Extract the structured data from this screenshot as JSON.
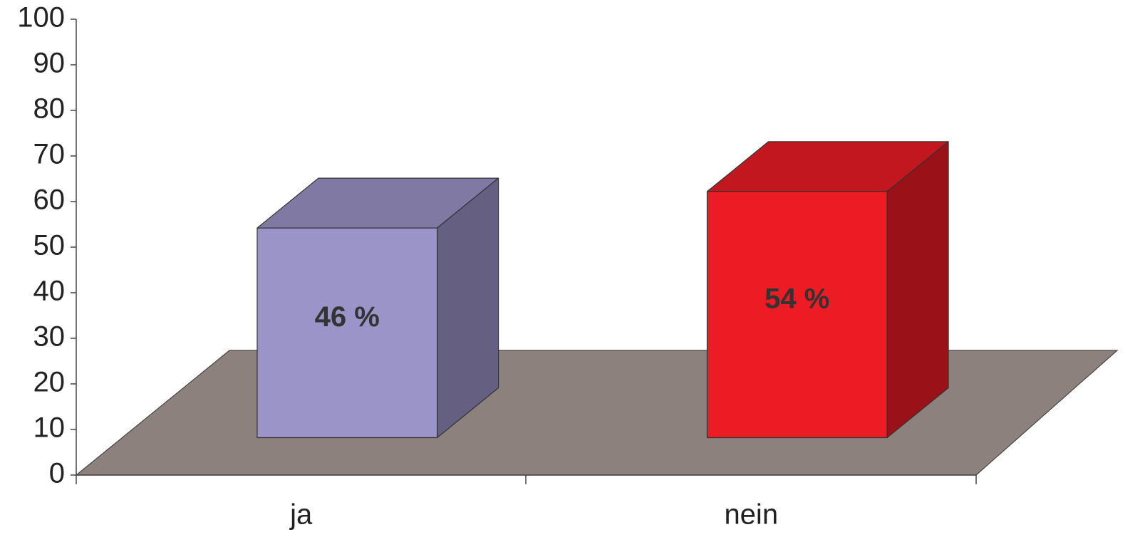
{
  "chart_data": {
    "type": "bar3d",
    "categories": [
      "ja",
      "nein"
    ],
    "values": [
      46,
      54
    ],
    "value_labels": [
      "46 %",
      "54 %"
    ],
    "colors": [
      "#9b94c8",
      "#ed1c24"
    ],
    "ylim": [
      0,
      100
    ],
    "yticks": [
      0,
      10,
      20,
      30,
      40,
      50,
      60,
      70,
      80,
      90,
      100
    ]
  }
}
